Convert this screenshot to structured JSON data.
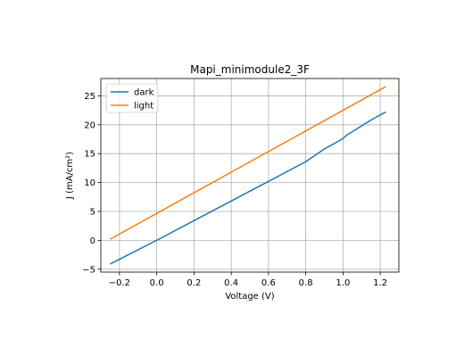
{
  "chart_data": {
    "type": "line",
    "title": "Mapi_minimodule2_3F",
    "xlabel": "Voltage (V)",
    "ylabel": "J (mA/cm²)",
    "xlim": [
      -0.3,
      1.3
    ],
    "ylim": [
      -5.5,
      28
    ],
    "xticks": [
      -0.2,
      0.0,
      0.2,
      0.4,
      0.6,
      0.8,
      1.0,
      1.2
    ],
    "xtick_labels": [
      "−0.2",
      "0.0",
      "0.2",
      "0.4",
      "0.6",
      "0.8",
      "1.0",
      "1.2"
    ],
    "yticks": [
      -5,
      0,
      5,
      10,
      15,
      20,
      25
    ],
    "ytick_labels": [
      "−5",
      "0",
      "5",
      "10",
      "15",
      "20",
      "25"
    ],
    "grid": true,
    "legend_position": "top-left",
    "series": [
      {
        "name": "dark",
        "color": "#1f77b4",
        "x": [
          -0.25,
          0.0,
          0.2,
          0.4,
          0.6,
          0.8,
          0.85,
          0.9,
          0.95,
          1.0,
          1.02,
          1.05,
          1.1,
          1.15,
          1.2,
          1.23
        ],
        "y": [
          -4.1,
          0.0,
          3.4,
          6.8,
          10.2,
          13.6,
          14.7,
          15.8,
          16.7,
          17.6,
          18.2,
          18.8,
          19.8,
          20.8,
          21.7,
          22.2
        ]
      },
      {
        "name": "light",
        "color": "#ff7f0e",
        "x": [
          -0.25,
          1.23
        ],
        "y": [
          0.2,
          26.6
        ]
      }
    ]
  }
}
